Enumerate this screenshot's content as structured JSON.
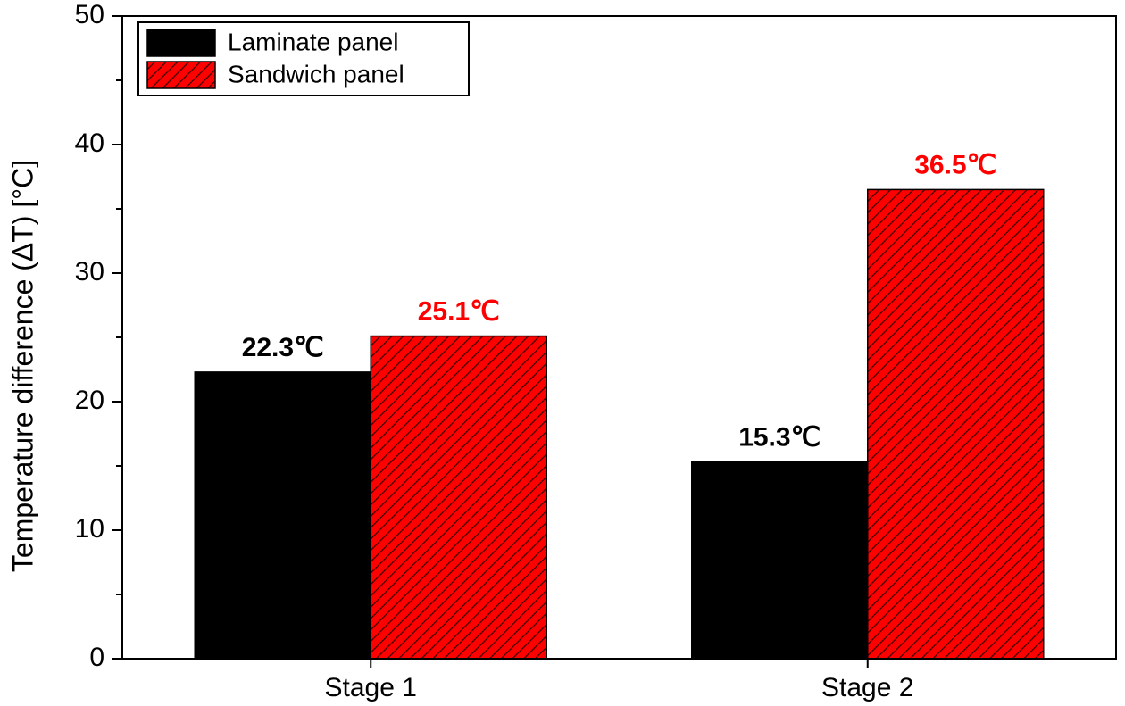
{
  "chart_data": {
    "type": "bar",
    "ylabel": "Temperature difference (ΔT) [°C]",
    "categories": [
      "Stage 1",
      "Stage 2"
    ],
    "series": [
      {
        "name": "Laminate panel",
        "color": "#000000",
        "values": [
          22.3,
          15.3
        ],
        "value_labels": [
          "22.3℃",
          "15.3℃"
        ]
      },
      {
        "name": "Sandwich panel",
        "color": "#ff0000",
        "hatch": true,
        "values": [
          25.1,
          36.5
        ],
        "value_labels": [
          "25.1℃",
          "36.5℃"
        ]
      }
    ],
    "ylim": [
      0,
      50
    ],
    "yticks": [
      0,
      10,
      20,
      30,
      40,
      50
    ],
    "minor_yticks": [
      5,
      15,
      25,
      35,
      45
    ],
    "grid": false,
    "legend": "upper left"
  }
}
